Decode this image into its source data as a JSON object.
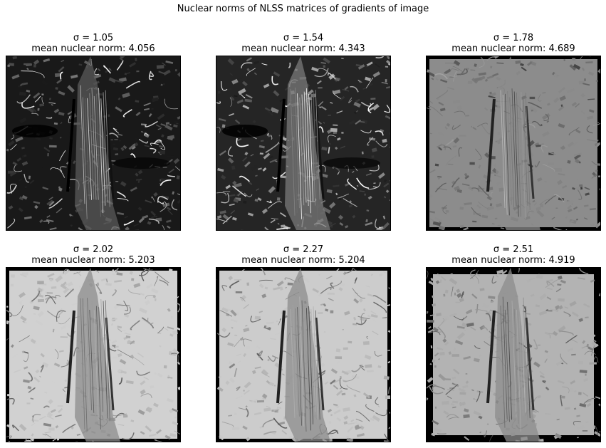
{
  "suptitle": "Nuclear norms of NLSS matrices of gradients of image",
  "panels": [
    {
      "sigma_label": "σ = 1.05",
      "norm_label": "mean nuclear norm: 4.056",
      "brightness": 0.28
    },
    {
      "sigma_label": "σ = 1.54",
      "norm_label": "mean nuclear norm: 4.343",
      "brightness": 0.42
    },
    {
      "sigma_label": "σ = 1.78",
      "norm_label": "mean nuclear norm: 4.689",
      "brightness": 0.55
    },
    {
      "sigma_label": "σ = 2.02",
      "norm_label": "mean nuclear norm: 5.203",
      "brightness": 0.82
    },
    {
      "sigma_label": "σ = 2.27",
      "norm_label": "mean nuclear norm: 5.204",
      "brightness": 0.8
    },
    {
      "sigma_label": "σ = 2.51",
      "norm_label": "mean nuclear norm: 4.919",
      "brightness": 0.7
    }
  ]
}
